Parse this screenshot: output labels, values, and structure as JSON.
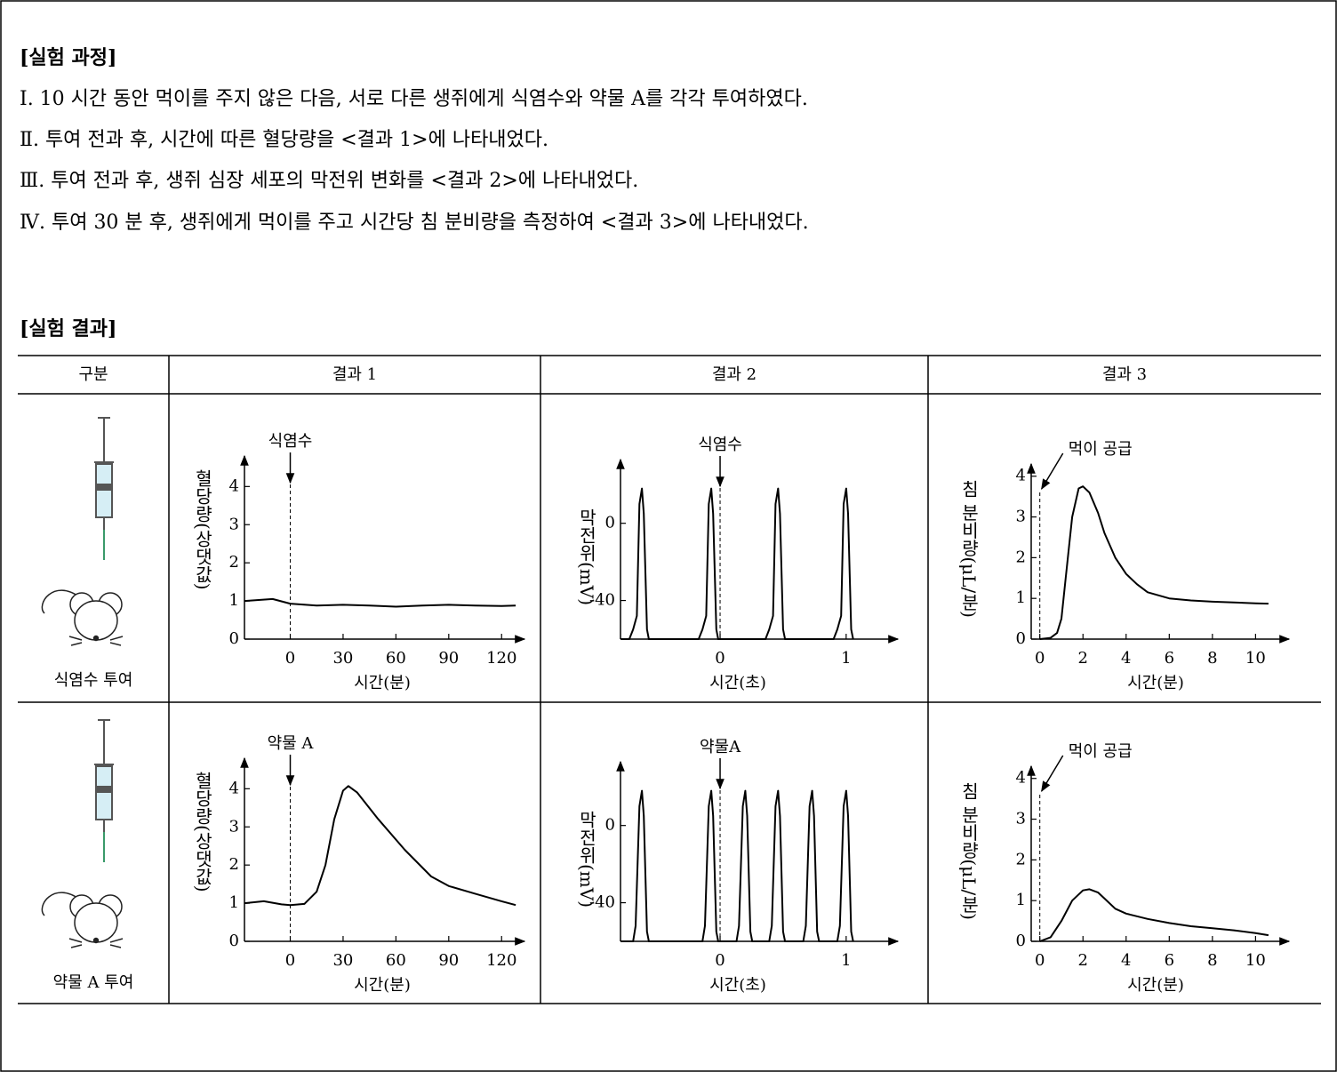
{
  "procedure": {
    "title": "[실험 과정]",
    "steps": [
      "Ⅰ. 10 시간 동안 먹이를 주지 않은 다음, 서로 다른 생쥐에게 식염수와 약물 A를 각각 투여하였다.",
      "Ⅱ. 투여 전과 후, 시간에 따른 혈당량을 <결과 1>에 나타내었다.",
      "Ⅲ. 투여 전과 후, 생쥐 심장 세포의 막전위 변화를 <결과 2>에 나타내었다.",
      "Ⅳ. 투여 30 분 후, 생쥐에게 먹이를 주고 시간당 침 분비량을 측정하여 <결과 3>에 나타내었다."
    ]
  },
  "results": {
    "title": "[실험 결과]"
  },
  "table": {
    "header": [
      "구분",
      "결과 1",
      "결과 2",
      "결과 3"
    ],
    "rows": [
      {
        "label": "식염수 투여",
        "charts": [
          {
            "type": "line",
            "annotation": {
              "text": "식염수",
              "x": 0
            },
            "y_label": "혈당량(상댓값)",
            "x_label": "시간(분)",
            "xlim": [
              -26,
              133
            ],
            "ylim": [
              0,
              4.8
            ],
            "xticks": [
              0,
              30,
              60,
              90,
              120
            ],
            "yticks": [
              0,
              1,
              2,
              3,
              4
            ],
            "x": [
              -26,
              -10,
              0,
              15,
              30,
              45,
              60,
              75,
              90,
              105,
              120,
              128
            ],
            "values": [
              1.0,
              1.05,
              0.93,
              0.88,
              0.9,
              0.88,
              0.85,
              0.88,
              0.9,
              0.88,
              0.87,
              0.88
            ]
          },
          {
            "type": "line",
            "annotation": {
              "text": "식염수",
              "x": 0
            },
            "y_label": "막전위(mV)",
            "x_label": "시간(초)",
            "xlim": [
              -0.79,
              1.41
            ],
            "ylim": [
              -60,
              33
            ],
            "xticks": [
              0,
              1
            ],
            "yticks": [
              0,
              -40
            ],
            "x": [
              -0.79,
              -0.72,
              -0.69,
              -0.66,
              -0.64,
              -0.62,
              -0.605,
              -0.58,
              -0.565,
              -0.17,
              -0.14,
              -0.11,
              -0.09,
              -0.07,
              -0.055,
              -0.03,
              -0.015,
              0.36,
              0.39,
              0.42,
              0.44,
              0.46,
              0.475,
              0.5,
              0.515,
              0.9,
              0.93,
              0.96,
              0.98,
              1.0,
              1.015,
              1.04,
              1.055
            ],
            "values": [
              -60,
              -60,
              -55,
              -48,
              10,
              18,
              5,
              -55,
              -60,
              -60,
              -55,
              -48,
              10,
              18,
              5,
              -55,
              -60,
              -60,
              -55,
              -48,
              10,
              18,
              5,
              -55,
              -60,
              -60,
              -55,
              -48,
              10,
              18,
              5,
              -55,
              -60
            ]
          },
          {
            "type": "line",
            "annotation": {
              "text": "먹이 공급",
              "x": 0
            },
            "y_label": "침 분비량(μL/분)",
            "x_label": "시간(분)",
            "xlim": [
              -0.4,
              11.55
            ],
            "ylim": [
              0,
              4.3
            ],
            "xticks": [
              0,
              2,
              4,
              6,
              8,
              10
            ],
            "yticks": [
              0,
              1,
              2,
              3,
              4
            ],
            "x": [
              0,
              0.5,
              0.8,
              1.0,
              1.2,
              1.5,
              1.8,
              2.0,
              2.3,
              2.7,
              3.0,
              3.5,
              4.0,
              4.5,
              5,
              6,
              7,
              8,
              9,
              10,
              10.6
            ],
            "values": [
              0,
              0.03,
              0.15,
              0.5,
              1.5,
              3.0,
              3.7,
              3.75,
              3.6,
              3.1,
              2.6,
              2.0,
              1.6,
              1.35,
              1.15,
              1.0,
              0.95,
              0.92,
              0.9,
              0.88,
              0.87
            ]
          }
        ]
      },
      {
        "label": "약물 A 투여",
        "charts": [
          {
            "type": "line",
            "annotation": {
              "text": "약물 A",
              "x": 0
            },
            "y_label": "혈당량(상댓값)",
            "x_label": "시간(분)",
            "xlim": [
              -26,
              133
            ],
            "ylim": [
              0,
              4.8
            ],
            "xticks": [
              0,
              30,
              60,
              90,
              120
            ],
            "yticks": [
              0,
              1,
              2,
              3,
              4
            ],
            "x": [
              -26,
              -15,
              -5,
              0,
              8,
              15,
              20,
              25,
              30,
              33,
              38,
              50,
              65,
              80,
              90,
              105,
              120,
              128
            ],
            "values": [
              1.0,
              1.05,
              0.97,
              0.95,
              0.98,
              1.3,
              2.0,
              3.2,
              3.95,
              4.07,
              3.9,
              3.2,
              2.4,
              1.7,
              1.45,
              1.25,
              1.05,
              0.95
            ]
          },
          {
            "type": "line",
            "annotation": {
              "text": "약물A",
              "x": 0
            },
            "y_label": "막전위(mV)",
            "x_label": "시간(초)",
            "xlim": [
              -0.79,
              1.41
            ],
            "ylim": [
              -60,
              33
            ],
            "xticks": [
              0,
              1
            ],
            "yticks": [
              0,
              -40
            ],
            "x": [
              -0.79,
              -0.69,
              -0.67,
              -0.64,
              -0.62,
              -0.605,
              -0.58,
              -0.565,
              -0.14,
              -0.12,
              -0.09,
              -0.07,
              -0.055,
              -0.03,
              -0.015,
              0.13,
              0.15,
              0.18,
              0.2,
              0.215,
              0.24,
              0.255,
              0.39,
              0.41,
              0.44,
              0.46,
              0.475,
              0.5,
              0.515,
              0.66,
              0.68,
              0.71,
              0.73,
              0.745,
              0.77,
              0.785,
              0.93,
              0.95,
              0.98,
              1.0,
              1.015,
              1.04,
              1.055
            ],
            "values": [
              -60,
              -60,
              -52,
              10,
              18,
              5,
              -55,
              -60,
              -60,
              -52,
              10,
              18,
              5,
              -55,
              -60,
              -60,
              -52,
              10,
              18,
              5,
              -55,
              -60,
              -60,
              -52,
              10,
              18,
              5,
              -55,
              -60,
              -60,
              -52,
              10,
              18,
              5,
              -55,
              -60,
              -60,
              -52,
              10,
              18,
              5,
              -55,
              -60
            ]
          },
          {
            "type": "line",
            "annotation": {
              "text": "먹이 공급",
              "x": 0
            },
            "y_label": "침 분비량(μL/분)",
            "x_label": "시간(분)",
            "xlim": [
              -0.4,
              11.55
            ],
            "ylim": [
              0,
              4.3
            ],
            "xticks": [
              0,
              2,
              4,
              6,
              8,
              10
            ],
            "yticks": [
              0,
              1,
              2,
              3,
              4
            ],
            "x": [
              0,
              0.5,
              1.0,
              1.5,
              2.0,
              2.3,
              2.7,
              3.0,
              3.5,
              4,
              5,
              6,
              7,
              8,
              9,
              10,
              10.6
            ],
            "values": [
              0,
              0.1,
              0.5,
              1.0,
              1.25,
              1.28,
              1.2,
              1.05,
              0.8,
              0.68,
              0.55,
              0.45,
              0.37,
              0.32,
              0.27,
              0.2,
              0.15
            ]
          }
        ]
      }
    ]
  }
}
